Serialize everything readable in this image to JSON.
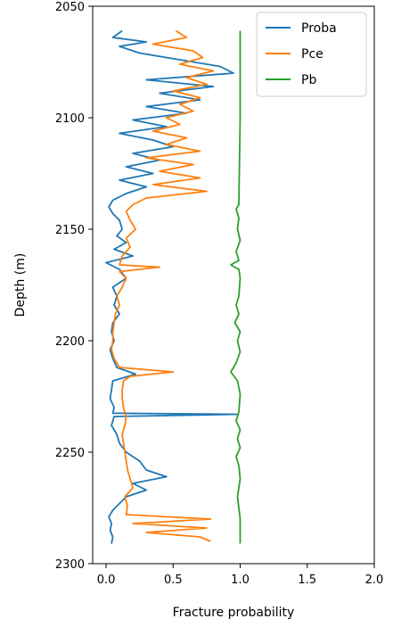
{
  "chart_data": {
    "type": "line",
    "title": "",
    "xlabel": "Fracture probability",
    "ylabel": "Depth (m)",
    "xlim": [
      -0.1,
      2.0
    ],
    "ylim": [
      2300,
      2050
    ],
    "y_inverted": true,
    "xticks": [
      0.0,
      0.5,
      1.0,
      1.5,
      2.0
    ],
    "xtick_labels": [
      "0.0",
      "0.5",
      "1.0",
      "1.5",
      "2.0"
    ],
    "yticks": [
      2050,
      2100,
      2150,
      2200,
      2250,
      2300
    ],
    "ytick_labels": [
      "2050",
      "2100",
      "2150",
      "2200",
      "2250",
      "2300"
    ],
    "grid": false,
    "legend_position": "top-right",
    "series": [
      {
        "name": "Proba",
        "color": "#1f77b4",
        "depth": [
          2061,
          2064,
          2066,
          2068,
          2071,
          2074,
          2077,
          2080,
          2083,
          2086,
          2089,
          2092,
          2095,
          2098,
          2101,
          2104,
          2107,
          2110,
          2113,
          2116,
          2119,
          2122,
          2125,
          2128,
          2131,
          2134,
          2137,
          2140,
          2143,
          2146,
          2150,
          2153,
          2156,
          2159,
          2162,
          2165,
          2168,
          2172,
          2176,
          2180,
          2184,
          2188,
          2192,
          2196,
          2200,
          2204,
          2208,
          2212,
          2215,
          2218,
          2222,
          2226,
          2230,
          2232.5,
          2233,
          2234,
          2238,
          2242,
          2246,
          2250,
          2254,
          2258,
          2261,
          2264,
          2267,
          2270,
          2273,
          2276,
          2279,
          2282,
          2285,
          2288,
          2291
        ],
        "value": [
          0.12,
          0.05,
          0.3,
          0.1,
          0.25,
          0.55,
          0.85,
          0.95,
          0.3,
          0.8,
          0.4,
          0.7,
          0.3,
          0.6,
          0.2,
          0.45,
          0.1,
          0.35,
          0.5,
          0.2,
          0.4,
          0.15,
          0.35,
          0.1,
          0.3,
          0.15,
          0.05,
          0.02,
          0.05,
          0.1,
          0.12,
          0.08,
          0.15,
          0.06,
          0.2,
          0.0,
          0.1,
          0.15,
          0.05,
          0.08,
          0.06,
          0.1,
          0.05,
          0.04,
          0.06,
          0.03,
          0.05,
          0.08,
          0.22,
          0.05,
          0.04,
          0.03,
          0.06,
          0.05,
          0.98,
          0.06,
          0.04,
          0.08,
          0.1,
          0.15,
          0.25,
          0.3,
          0.45,
          0.2,
          0.3,
          0.15,
          0.1,
          0.05,
          0.02,
          0.04,
          0.03,
          0.05,
          0.04
        ]
      },
      {
        "name": "Pce",
        "color": "#ff7f0e",
        "depth": [
          2061,
          2064,
          2067,
          2070,
          2073,
          2076,
          2079,
          2082,
          2085,
          2088,
          2091,
          2094,
          2097,
          2100,
          2103,
          2106,
          2109,
          2112,
          2115,
          2118,
          2121,
          2124,
          2127,
          2130,
          2133,
          2136,
          2139,
          2142,
          2146,
          2150,
          2154,
          2158,
          2162,
          2166,
          2167,
          2169,
          2172,
          2176,
          2180,
          2184,
          2188,
          2192,
          2196,
          2200,
          2204,
          2208,
          2212,
          2214,
          2216,
          2218,
          2222,
          2226,
          2230,
          2234,
          2238,
          2242,
          2246,
          2250,
          2254,
          2258,
          2262,
          2266,
          2270,
          2274,
          2278,
          2280,
          2282,
          2284,
          2286,
          2288,
          2290
        ],
        "value": [
          0.52,
          0.6,
          0.35,
          0.65,
          0.72,
          0.55,
          0.8,
          0.6,
          0.75,
          0.5,
          0.7,
          0.55,
          0.65,
          0.45,
          0.55,
          0.35,
          0.6,
          0.45,
          0.7,
          0.3,
          0.65,
          0.4,
          0.7,
          0.35,
          0.75,
          0.3,
          0.2,
          0.15,
          0.18,
          0.22,
          0.15,
          0.18,
          0.12,
          0.1,
          0.4,
          0.1,
          0.15,
          0.12,
          0.08,
          0.1,
          0.07,
          0.06,
          0.05,
          0.05,
          0.04,
          0.06,
          0.1,
          0.5,
          0.18,
          0.13,
          0.12,
          0.12,
          0.13,
          0.15,
          0.14,
          0.12,
          0.13,
          0.14,
          0.15,
          0.16,
          0.18,
          0.2,
          0.14,
          0.16,
          0.15,
          0.78,
          0.2,
          0.75,
          0.3,
          0.7,
          0.78
        ]
      },
      {
        "name": "Pb",
        "color": "#2ca02c",
        "depth": [
          2061,
          2100,
          2139,
          2141,
          2145,
          2150,
          2155,
          2160,
          2164,
          2166,
          2168,
          2172,
          2180,
          2184,
          2188,
          2192,
          2196,
          2200,
          2205,
          2210,
          2214,
          2218,
          2224,
          2232,
          2236,
          2240,
          2244,
          2248,
          2252,
          2256,
          2262,
          2270,
          2280,
          2291
        ],
        "value": [
          1.0,
          1.0,
          0.99,
          0.97,
          0.99,
          0.98,
          1.0,
          0.97,
          0.99,
          0.93,
          0.99,
          1.0,
          0.99,
          0.97,
          0.99,
          0.96,
          1.0,
          0.98,
          1.0,
          0.97,
          0.93,
          0.98,
          1.0,
          0.99,
          0.97,
          1.0,
          0.98,
          1.0,
          0.97,
          0.99,
          1.0,
          0.98,
          1.0,
          1.0
        ]
      }
    ]
  }
}
